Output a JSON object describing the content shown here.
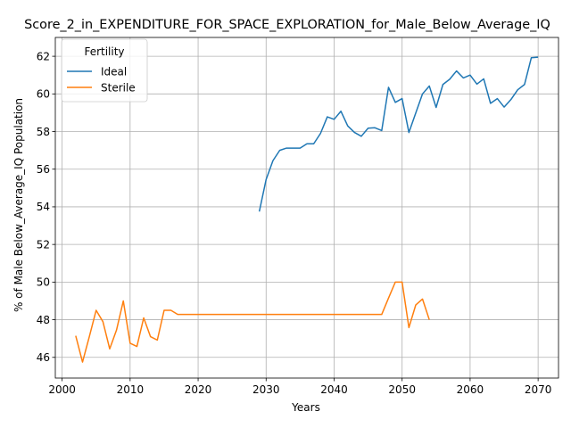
{
  "chart_data": {
    "type": "line",
    "title": "Score_2_in_EXPENDITURE_FOR_SPACE_EXPLORATION_for_Male_Below_Average_IQ",
    "xlabel": "Years",
    "ylabel": "% of Male Below_Average_IQ Population",
    "xlim": [
      1999,
      2073
    ],
    "ylim": [
      44.9,
      63.0
    ],
    "xticks": [
      2000,
      2010,
      2020,
      2030,
      2040,
      2050,
      2060,
      2070
    ],
    "yticks": [
      46,
      48,
      50,
      52,
      54,
      56,
      58,
      60,
      62
    ],
    "grid": true,
    "legend": {
      "title": "Fertility",
      "placement": "top-left"
    },
    "series": [
      {
        "name": "Ideal",
        "color": "#1f77b4",
        "x": [
          2029,
          2030,
          2031,
          2032,
          2033,
          2034,
          2035,
          2036,
          2037,
          2038,
          2039,
          2040,
          2041,
          2042,
          2043,
          2044,
          2045,
          2046,
          2047,
          2048,
          2049,
          2050,
          2051,
          2052,
          2053,
          2054,
          2055,
          2056,
          2057,
          2058,
          2059,
          2060,
          2061,
          2062,
          2063,
          2064,
          2065,
          2066,
          2067,
          2068,
          2069,
          2070
        ],
        "y": [
          53.75,
          55.45,
          56.45,
          57.0,
          57.12,
          57.12,
          57.12,
          57.35,
          57.35,
          57.9,
          58.78,
          58.65,
          59.08,
          58.3,
          57.95,
          57.75,
          58.18,
          58.2,
          58.05,
          60.35,
          59.55,
          59.75,
          57.95,
          58.98,
          60.0,
          60.42,
          59.28,
          60.5,
          60.78,
          61.22,
          60.85,
          61.0,
          60.52,
          60.8,
          59.5,
          59.75,
          59.3,
          59.7,
          60.22,
          60.5,
          61.92,
          61.95
        ]
      },
      {
        "name": "Sterile",
        "color": "#ff7f0e",
        "x": [
          2002,
          2003,
          2004,
          2005,
          2006,
          2007,
          2008,
          2009,
          2010,
          2011,
          2012,
          2013,
          2014,
          2015,
          2016,
          2017,
          2018,
          2019,
          2020,
          2021,
          2022,
          2023,
          2024,
          2025,
          2026,
          2027,
          2028,
          2029,
          2030,
          2031,
          2032,
          2033,
          2034,
          2035,
          2036,
          2037,
          2038,
          2039,
          2040,
          2041,
          2042,
          2043,
          2044,
          2045,
          2046,
          2047,
          2048,
          2049,
          2050,
          2051,
          2052,
          2053,
          2054
        ],
        "y": [
          47.15,
          45.75,
          47.1,
          48.5,
          47.9,
          46.45,
          47.45,
          49.0,
          46.75,
          46.58,
          48.1,
          47.1,
          46.92,
          48.5,
          48.5,
          48.28,
          48.28,
          48.28,
          48.28,
          48.28,
          48.28,
          48.28,
          48.28,
          48.28,
          48.28,
          48.28,
          48.28,
          48.28,
          48.28,
          48.28,
          48.28,
          48.28,
          48.28,
          48.28,
          48.28,
          48.28,
          48.28,
          48.28,
          48.28,
          48.28,
          48.28,
          48.28,
          48.28,
          48.28,
          48.28,
          48.28,
          49.15,
          50.0,
          50.0,
          47.58,
          48.78,
          49.1,
          48.0
        ]
      }
    ]
  }
}
